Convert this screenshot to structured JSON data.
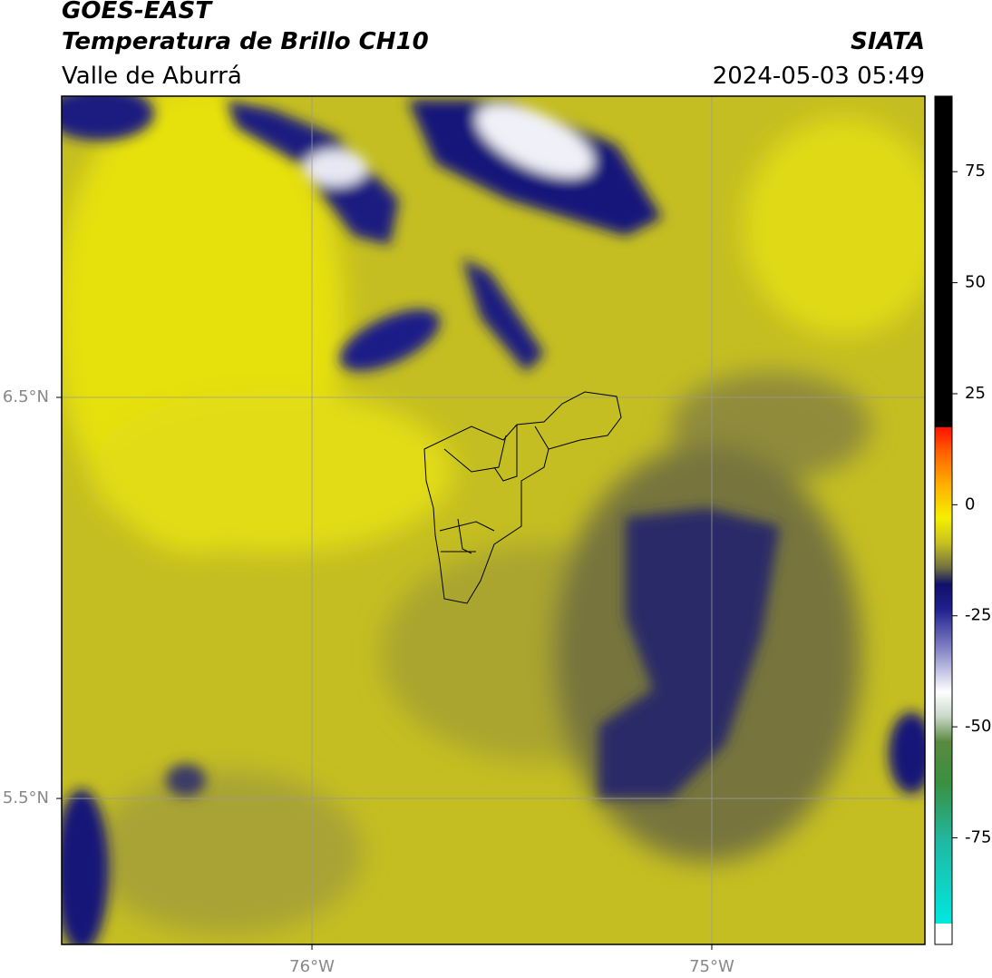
{
  "header": {
    "title": "GOES-EAST",
    "subtitle": "Temperatura de Brillo CH10",
    "source": "SIATA",
    "region": "Valle de Aburrá",
    "datetime": "2024-05-03 05:49"
  },
  "map": {
    "lonlim": [
      -76.626,
      -74.467
    ],
    "latlim": [
      5.136,
      7.251
    ],
    "lonticks": [
      {
        "value": -76,
        "label": "76°W"
      },
      {
        "value": -75,
        "label": "75°W"
      }
    ],
    "latticks": [
      {
        "value": 6.5,
        "label": "6.5°N"
      },
      {
        "value": 5.5,
        "label": "5.5°N"
      }
    ],
    "grid": true,
    "colorbar": {
      "lim": [
        -99,
        92
      ],
      "ticks": [
        75,
        50,
        25,
        0,
        -25,
        -50,
        -75
      ]
    }
  }
}
